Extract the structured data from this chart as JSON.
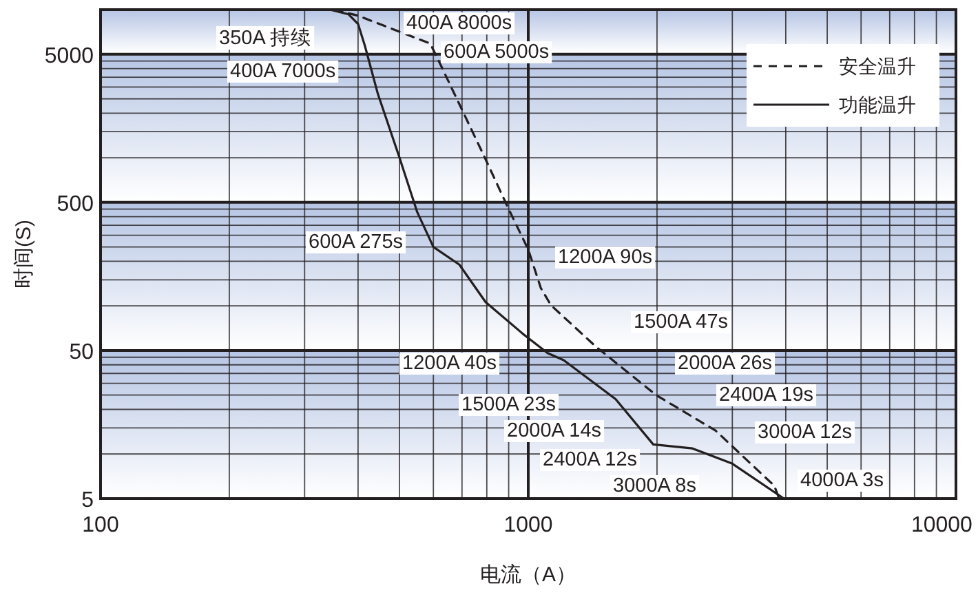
{
  "chart_data": {
    "type": "line",
    "xlabel": "电流（A）",
    "ylabel": "时间(S)",
    "log": "xy",
    "xlim": [
      100,
      10000
    ],
    "ylim": [
      5,
      10000
    ],
    "xticks": [
      100,
      1000,
      10000
    ],
    "yticks": [
      5,
      50,
      500,
      5000
    ],
    "grid": true,
    "legend": "top right",
    "marker": "none",
    "series": [
      {
        "name": "安全温升",
        "color": "#231f20",
        "line_style": "dashed",
        "x": [
          352,
          400,
          590,
          620,
          795,
          900,
          1000,
          1070,
          1130,
          1440,
          1990,
          2740,
          3760,
          3860
        ],
        "values": [
          10000,
          9100,
          5900,
          4400,
          975,
          450,
          240,
          132,
          101,
          53,
          25,
          14.4,
          6.1,
          5
        ]
      },
      {
        "name": "功能温升",
        "color": "#231f20",
        "line_style": "solid",
        "x": [
          344,
          380,
          400,
          415,
          445,
          500,
          550,
          600,
          690,
          795,
          970,
          1110,
          1210,
          1600,
          1960,
          2420,
          3000,
          3960
        ],
        "values": [
          10000,
          9300,
          8000,
          5700,
          2700,
          1000,
          430,
          250,
          190,
          106,
          65,
          48,
          43,
          23.5,
          11.6,
          10.9,
          8.6,
          5
        ]
      }
    ],
    "annotations": [
      "350A 持续",
      "400A 8000s",
      "600A 5000s",
      "400A 7000s",
      "600A 275s",
      "1200A 90s",
      "1500A 47s",
      "1200A 40s",
      "2000A 26s",
      "1500A 23s",
      "2400A 19s",
      "2000A 14s",
      "3000A 12s",
      "2400A 12s",
      "3000A 8s",
      "4000A 3s"
    ]
  }
}
